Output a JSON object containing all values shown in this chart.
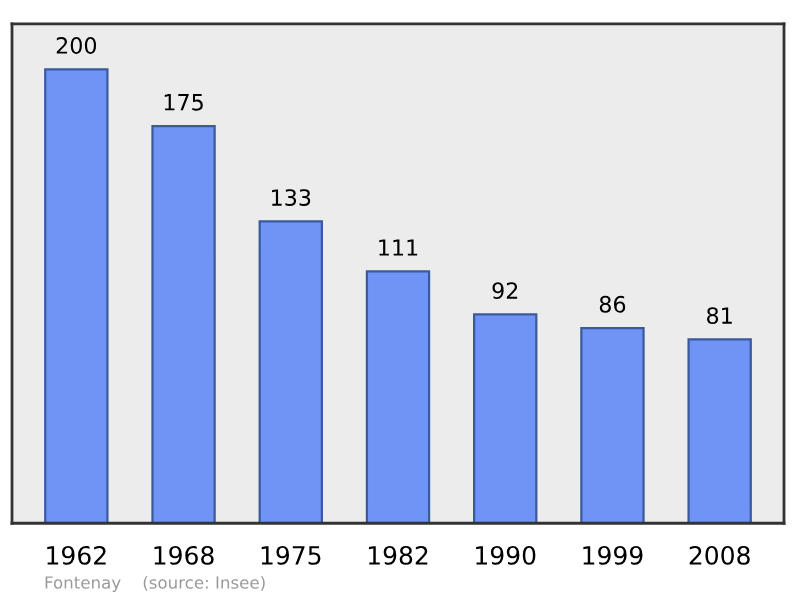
{
  "chart_data": {
    "type": "bar",
    "categories": [
      "1962",
      "1968",
      "1975",
      "1982",
      "1990",
      "1999",
      "2008"
    ],
    "values": [
      200,
      175,
      133,
      111,
      92,
      86,
      81
    ],
    "color": "#6f94f5",
    "data_labels": true,
    "grid": false,
    "annotations": [
      "Fontenay",
      "(source: Insee)"
    ]
  }
}
